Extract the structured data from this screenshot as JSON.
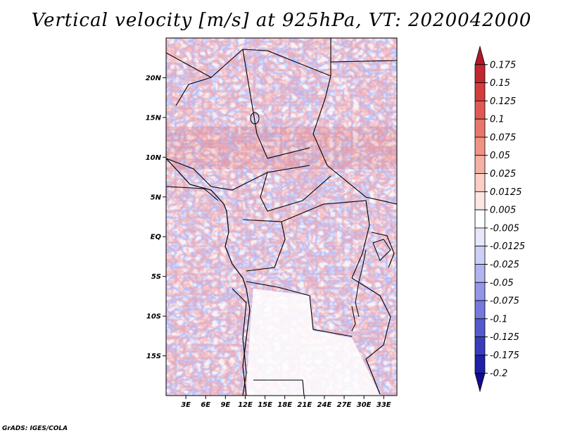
{
  "title": "Vertical velocity [m/s] at 925hPa, VT: 2020042000",
  "credit": "GrADS: IGES/COLA",
  "map": {
    "lon_range": [
      0,
      35
    ],
    "lat_range": [
      -20,
      25
    ],
    "lat_ticks": [
      {
        "value": 20,
        "label": "20N"
      },
      {
        "value": 15,
        "label": "15N"
      },
      {
        "value": 10,
        "label": "10N"
      },
      {
        "value": 5,
        "label": "5N"
      },
      {
        "value": 0,
        "label": "EQ"
      },
      {
        "value": -5,
        "label": "5S"
      },
      {
        "value": -10,
        "label": "10S"
      },
      {
        "value": -15,
        "label": "15S"
      }
    ],
    "lon_ticks": [
      {
        "value": 3,
        "label": "3E"
      },
      {
        "value": 6,
        "label": "6E"
      },
      {
        "value": 9,
        "label": "9E"
      },
      {
        "value": 12,
        "label": "12E"
      },
      {
        "value": 15,
        "label": "15E"
      },
      {
        "value": 18,
        "label": "18E"
      },
      {
        "value": 21,
        "label": "21E"
      },
      {
        "value": 24,
        "label": "24E"
      },
      {
        "value": 27,
        "label": "27E"
      },
      {
        "value": 30,
        "label": "30E"
      },
      {
        "value": 33,
        "label": "33E"
      }
    ]
  },
  "colorbar": {
    "levels": [
      "0.175",
      "0.15",
      "0.125",
      "0.1",
      "0.075",
      "0.05",
      "0.025",
      "0.0125",
      "0.005",
      "-0.005",
      "-0.0125",
      "-0.025",
      "-0.05",
      "-0.075",
      "-0.1",
      "-0.125",
      "-0.175",
      "-0.2"
    ],
    "colors": [
      "#b2182b",
      "#c32631",
      "#d43d3d",
      "#e05a52",
      "#e9776b",
      "#f09387",
      "#f6b1a6",
      "#fbcfc6",
      "#fde7e2",
      "#ffffff",
      "#e7e7fb",
      "#cccff6",
      "#b0b4ef",
      "#9397e8",
      "#7579dd",
      "#5559cf",
      "#3a3cbe",
      "#1f1fa8",
      "#110e8e"
    ]
  }
}
